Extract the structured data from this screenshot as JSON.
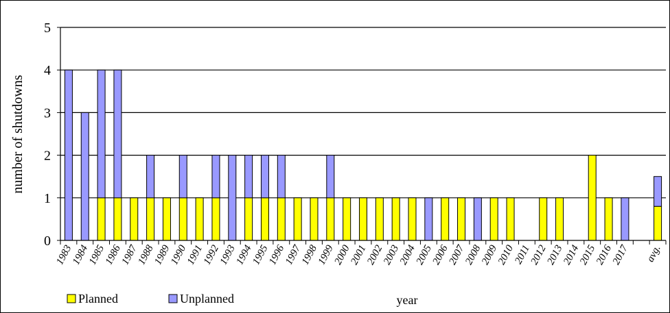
{
  "chart_data": {
    "type": "bar",
    "stacked": true,
    "title": "",
    "xlabel": "year",
    "ylabel": "number of shutdowns",
    "ylim": [
      0,
      5
    ],
    "yticks": [
      0,
      1,
      2,
      3,
      4,
      5
    ],
    "grid": true,
    "legend_placement": "bottom-left",
    "categories": [
      "1983",
      "1984",
      "1985",
      "1986",
      "1987",
      "1988",
      "1989",
      "1990",
      "1991",
      "1992",
      "1993",
      "1994",
      "1995",
      "1996",
      "1997",
      "1998",
      "1999",
      "2000",
      "2001",
      "2002",
      "2003",
      "2004",
      "2005",
      "2006",
      "2007",
      "2008",
      "2009",
      "2010",
      "2011",
      "2012",
      "2013",
      "2014",
      "2015",
      "2016",
      "2017",
      "",
      "avg."
    ],
    "series": [
      {
        "name": "Planned",
        "color": "#ffff00",
        "values": [
          0,
          0,
          1,
          1,
          1,
          1,
          1,
          1,
          1,
          1,
          0,
          1,
          1,
          1,
          1,
          1,
          1,
          1,
          1,
          1,
          1,
          1,
          0,
          1,
          1,
          0,
          1,
          1,
          0,
          1,
          1,
          0,
          2,
          1,
          0,
          null,
          0.8
        ]
      },
      {
        "name": "Unplanned",
        "color": "#9999ff",
        "values": [
          4,
          3,
          3,
          3,
          0,
          1,
          0,
          1,
          0,
          1,
          2,
          1,
          1,
          1,
          0,
          0,
          1,
          0,
          0,
          0,
          0,
          0,
          1,
          0,
          0,
          1,
          0,
          0,
          0,
          0,
          0,
          0,
          0,
          0,
          1,
          null,
          0.7
        ]
      }
    ]
  }
}
